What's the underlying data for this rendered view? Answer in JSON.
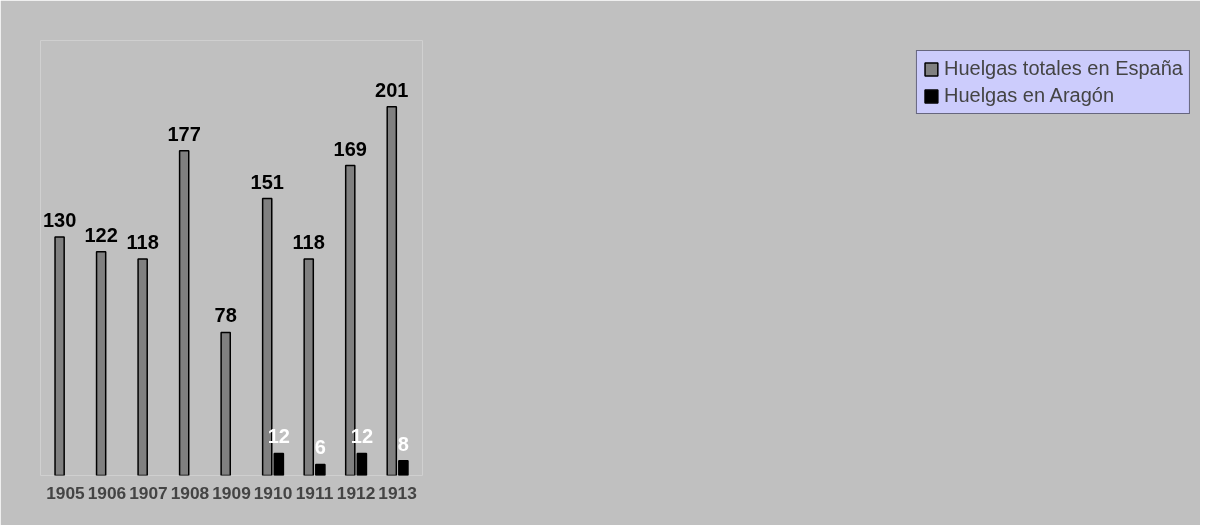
{
  "chart_data": {
    "type": "bar",
    "categories": [
      "1905",
      "1906",
      "1907",
      "1908",
      "1909",
      "1910",
      "1911",
      "1912",
      "1913"
    ],
    "series": [
      {
        "name": "Huelgas totales en España",
        "color": "#808080",
        "values": [
          130,
          122,
          118,
          177,
          78,
          151,
          118,
          169,
          201
        ]
      },
      {
        "name": "Huelgas en Aragón",
        "color": "#000000",
        "values": [
          null,
          null,
          null,
          null,
          null,
          12,
          6,
          12,
          8
        ]
      }
    ],
    "data_labels": true,
    "legend": "right",
    "grid": false
  }
}
